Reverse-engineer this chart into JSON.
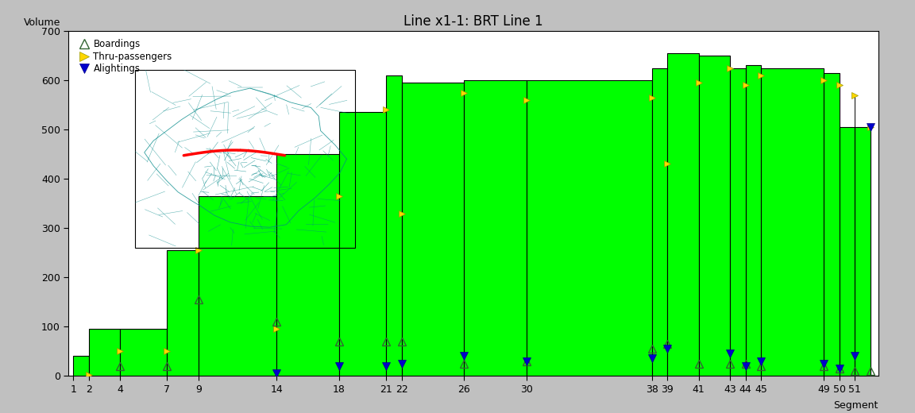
{
  "title": "Line x1-1: BRT Line 1",
  "xlabel": "Segment",
  "ylabel": "Volume",
  "ylim": [
    0,
    700
  ],
  "yticks": [
    0,
    100,
    200,
    300,
    400,
    500,
    600,
    700
  ],
  "bg_color": "#c0c0c0",
  "plot_bg": "#ffffff",
  "bar_color": "#00ff00",
  "bar_edge_color": "#000000",
  "segments": [
    1,
    2,
    4,
    7,
    9,
    14,
    18,
    21,
    22,
    26,
    30,
    38,
    39,
    41,
    43,
    44,
    45,
    49,
    50,
    51
  ],
  "bar_heights": [
    40,
    95,
    95,
    255,
    365,
    450,
    535,
    610,
    595,
    600,
    600,
    625,
    655,
    650,
    625,
    630,
    625,
    615,
    505,
    505
  ],
  "thru_passengers": [
    2,
    50,
    50,
    255,
    95,
    365,
    540,
    330,
    575,
    560,
    565,
    430,
    595,
    625,
    590,
    610,
    600,
    590,
    570,
    505
  ],
  "boardings": [
    0,
    20,
    20,
    155,
    110,
    70,
    70,
    70,
    25,
    30,
    55,
    65,
    25,
    25,
    25,
    20,
    20,
    15,
    10,
    10
  ],
  "alightings": [
    0,
    0,
    0,
    0,
    5,
    20,
    20,
    25,
    40,
    30,
    35,
    55,
    0,
    45,
    20,
    30,
    25,
    15,
    40,
    505
  ],
  "title_fontsize": 12,
  "label_fontsize": 9,
  "tick_fontsize": 9
}
